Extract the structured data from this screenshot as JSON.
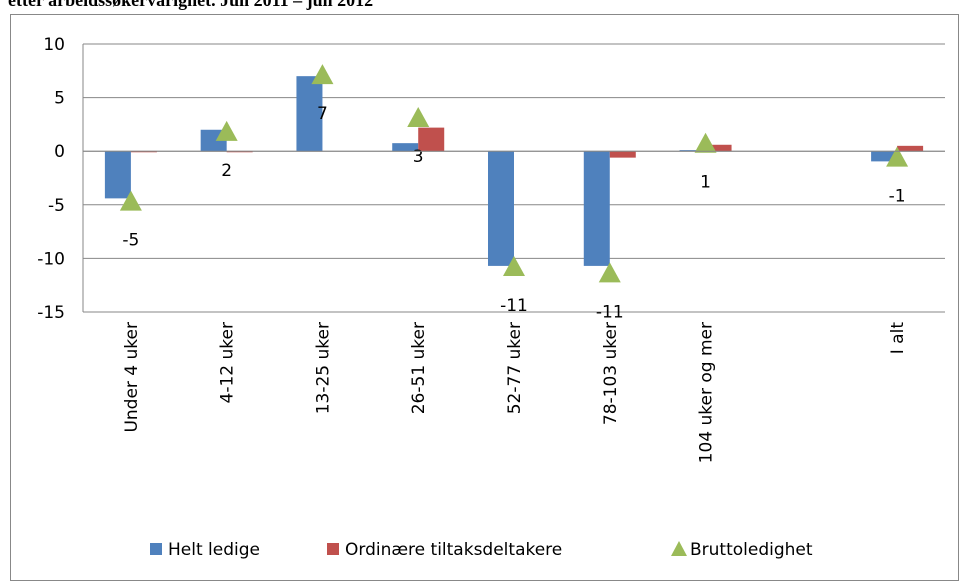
{
  "chart_data": {
    "type": "bar",
    "title": "etter arbeidssøkervarighet. Juli 2011 – juli 2012",
    "categories": [
      "Under 4 uker",
      "4-12 uker",
      "13-25 uker",
      "26-51 uker",
      "52-77 uker",
      "78-103 uker",
      "104 uker og mer",
      null,
      "I alt"
    ],
    "series": [
      {
        "name": "Helt ledige",
        "color": "#4f81bd",
        "type": "bar",
        "values": [
          -4.4,
          2.0,
          7.0,
          0.75,
          -10.7,
          -10.7,
          0.1,
          null,
          -0.95
        ]
      },
      {
        "name": "Ordinære tiltaksdeltakere",
        "color": "#c0504d",
        "type": "bar",
        "values": [
          -0.1,
          -0.1,
          0,
          2.2,
          0,
          -0.6,
          0.6,
          null,
          0.5
        ]
      },
      {
        "name": "Bruttoledighet",
        "color": "#9bbb59",
        "type": "marker",
        "values": [
          -4.7,
          1.8,
          7.1,
          3.1,
          -10.8,
          -11.4,
          0.7,
          null,
          -0.6
        ],
        "value_labels": [
          "-5",
          "2",
          "7",
          "3",
          "-11",
          "-11",
          "1",
          null,
          "-1"
        ]
      }
    ],
    "ylim": [
      -15,
      10
    ],
    "yticks": [
      -15,
      -10,
      -5,
      0,
      5,
      10
    ],
    "grid": true,
    "legend": "bottom"
  }
}
